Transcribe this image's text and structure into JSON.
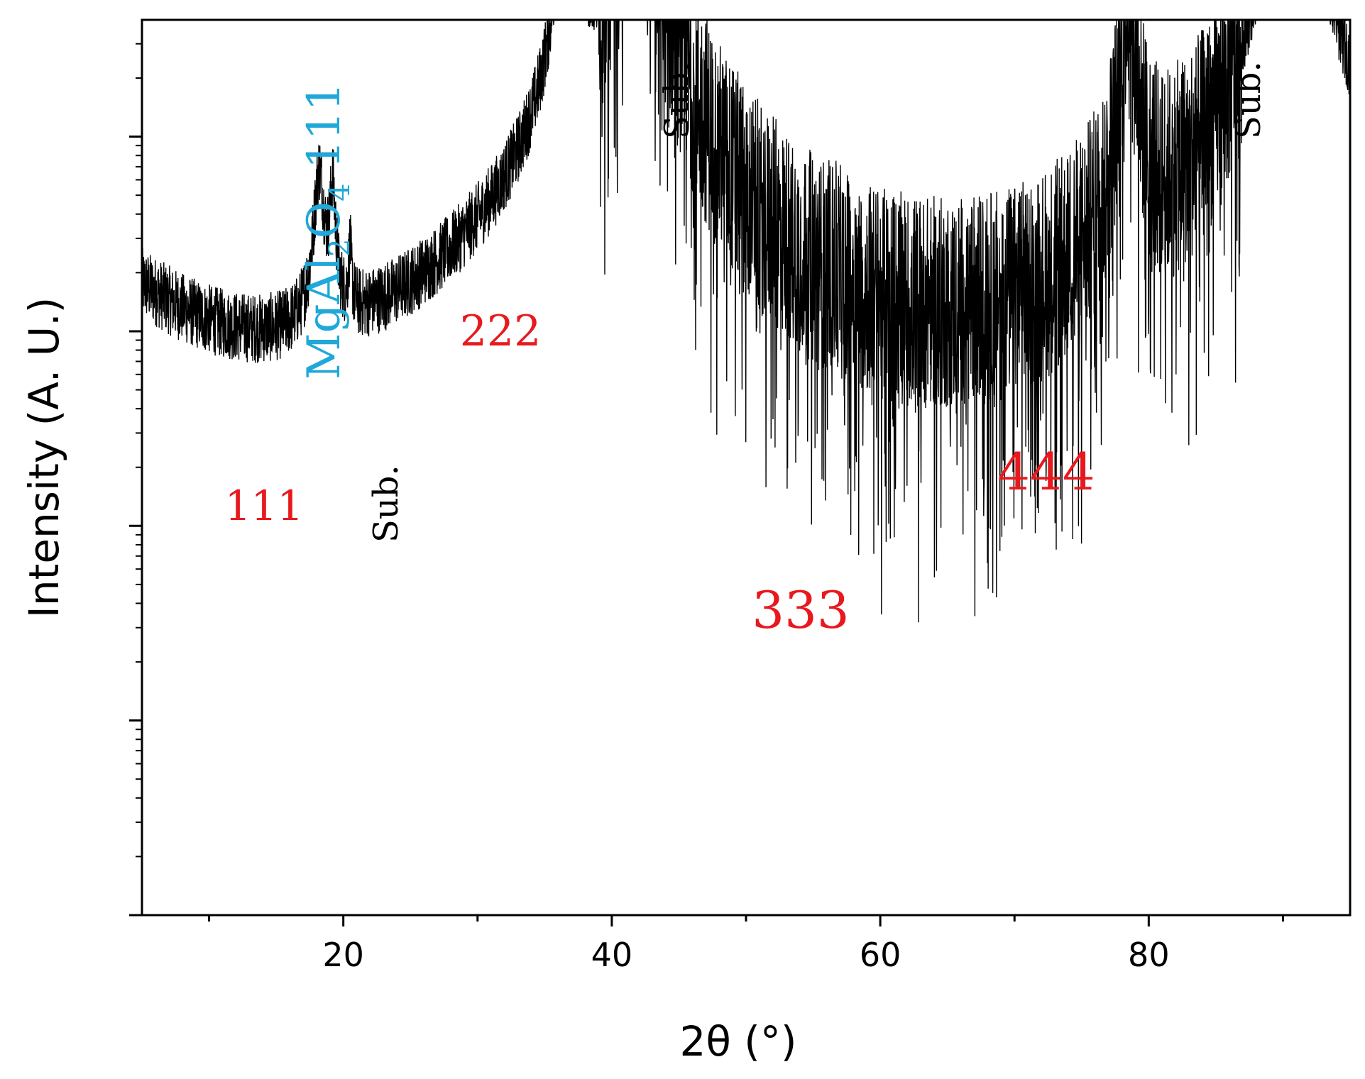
{
  "chart_data": {
    "type": "line",
    "title": "",
    "xlabel": "2θ (°)",
    "ylabel": "Intensity (A. U.)",
    "xlim": [
      5,
      95
    ],
    "x_ticks": [
      20,
      40,
      60,
      80
    ],
    "yscale": "log",
    "ylim_decades": [
      0,
      4.6
    ],
    "y_tick_labels_shown": false,
    "grid": false,
    "legend": "none",
    "line_color": "#000000",
    "series": [
      {
        "baseline_points": [
          [
            5,
            3.15
          ],
          [
            8,
            2.95
          ],
          [
            12,
            2.7
          ],
          [
            16,
            2.45
          ],
          [
            18.5,
            2.35
          ],
          [
            20.5,
            2.2
          ],
          [
            25,
            1.95
          ],
          [
            30,
            1.75
          ],
          [
            33,
            1.62
          ],
          [
            35,
            1.6
          ],
          [
            38.5,
            1.25
          ],
          [
            40,
            1.0
          ],
          [
            44,
            0.95
          ],
          [
            55,
            0.82
          ],
          [
            60,
            0.82
          ],
          [
            70,
            0.82
          ],
          [
            76,
            0.82
          ],
          [
            86,
            0.8
          ],
          [
            87,
            1.2
          ],
          [
            89,
            1.6
          ],
          [
            95,
            1.3
          ]
        ],
        "peaks": [
          {
            "x": 18.2,
            "logI": 3.75,
            "width": 0.35
          },
          {
            "x": 19.2,
            "logI": 3.65,
            "width": 0.2
          },
          {
            "x": 20.5,
            "logI": 3.13,
            "width": 0.12
          },
          {
            "x": 36.8,
            "logI": 5.7,
            "width": 0.35
          },
          {
            "x": 41.7,
            "logI": 7.0,
            "width": 0.18
          },
          {
            "x": 56.6,
            "logI": 2.15,
            "width": 0.45
          },
          {
            "x": 78.5,
            "logI": 4.75,
            "width": 0.45
          },
          {
            "x": 90.7,
            "logI": 7.0,
            "width": 0.2
          },
          {
            "x": 91.0,
            "logI": 6.2,
            "width": 0.15
          }
        ]
      }
    ],
    "annotations": [
      {
        "text": "111",
        "color": "#e8191e",
        "kind": "film"
      },
      {
        "text": "222",
        "color": "#e8191e",
        "kind": "film"
      },
      {
        "text": "333",
        "color": "#e8191e",
        "kind": "film"
      },
      {
        "text": "444",
        "color": "#e8191e",
        "kind": "film"
      },
      {
        "text": "Sub.",
        "color": "#000000",
        "kind": "substrate"
      },
      {
        "text": "Sub.",
        "color": "#000000",
        "kind": "substrate"
      },
      {
        "text": "Sub.",
        "color": "#000000",
        "kind": "substrate"
      }
    ],
    "mgal_label": {
      "prefix": "MgAl",
      "sub1": "2",
      "mid": "O",
      "sub2": "4",
      "suffix": " 111",
      "color": "#1fa8d8"
    }
  }
}
